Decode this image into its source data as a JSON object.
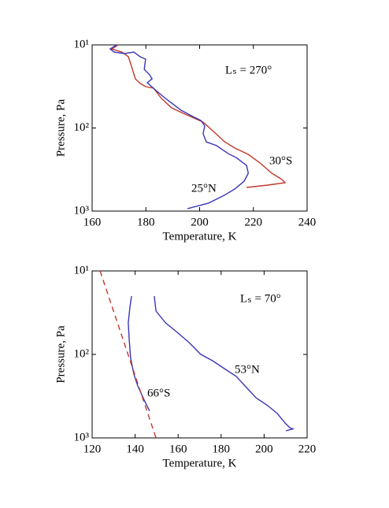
{
  "chart_data": [
    {
      "type": "line",
      "x_label": "Temperature, K",
      "y_label": "Pressure, Pa",
      "annotation": "Lₛ = 270°",
      "log_y": true,
      "y_reversed": true,
      "xlim": [
        160,
        240
      ],
      "xticks": [
        160,
        180,
        200,
        220,
        240
      ],
      "ylim": [
        10,
        1000
      ],
      "yticks": [
        {
          "value": 10,
          "label": "10¹"
        },
        {
          "value": 100,
          "label": "10²"
        },
        {
          "value": 1000,
          "label": "10³"
        }
      ],
      "series": [
        {
          "name": "30°S",
          "color": "#c0392b",
          "x": [
            169.7,
            167.3,
            171.1,
            173.5,
            174.7,
            176.1,
            177.9,
            179.9,
            182.9,
            185.8,
            189.6,
            194.6,
            201.3,
            205.5,
            209.3,
            213.1,
            218.1,
            222.5,
            226.9,
            230.7,
            231.8,
            225.4,
            217.5
          ],
          "y": [
            10,
            11.2,
            12.2,
            13.9,
            18.4,
            25.6,
            29.1,
            31.8,
            33.2,
            44.1,
            57.3,
            68.2,
            84.9,
            112.7,
            146.6,
            174.6,
            207.8,
            264.4,
            351,
            418,
            456,
            487,
            520
          ]
        },
        {
          "name": "25°N",
          "color": "#3a35b8",
          "x": [
            169.1,
            166.7,
            168.2,
            172,
            175.5,
            177.9,
            179.9,
            179.4,
            181.4,
            182.3,
            180.5,
            183.8,
            187.3,
            193.1,
            197.5,
            200.5,
            201.9,
            201.3,
            202.5,
            206.3,
            210.7,
            213.7,
            217.5,
            218.1,
            216.6,
            213.1,
            209.3,
            203.4,
            195.5
          ],
          "y": [
            10,
            11.2,
            12.2,
            12.7,
            12.2,
            13.9,
            14.8,
            19.7,
            22.9,
            25.6,
            28.5,
            35.5,
            44.1,
            61.2,
            72.8,
            81.2,
            94.5,
            117,
            147,
            163,
            204,
            228,
            283,
            351,
            436,
            541,
            643,
            801,
            934
          ]
        }
      ]
    },
    {
      "type": "line",
      "x_label": "Temperature, K",
      "y_label": "Pressure, Pa",
      "annotation": "Lₛ = 70°",
      "log_y": true,
      "y_reversed": true,
      "xlim": [
        120,
        220
      ],
      "xticks": [
        120,
        140,
        160,
        180,
        200,
        220
      ],
      "ylim": [
        10,
        1000
      ],
      "yticks": [
        {
          "value": 10,
          "label": "10¹"
        },
        {
          "value": 100,
          "label": "10²"
        },
        {
          "value": 1000,
          "label": "10³"
        }
      ],
      "series": [
        {
          "name": "53°N",
          "color": "#3a35b8",
          "x": [
            148.9,
            149.7,
            154.1,
            159.6,
            165.1,
            170.5,
            176.0,
            181.5,
            187.0,
            191.8,
            196.2,
            201.7,
            206.1,
            209.7,
            211.9,
            213.4,
            210.1
          ],
          "y": [
            20.0,
            30.2,
            41.8,
            54.4,
            72.1,
            99.8,
            119,
            148,
            183,
            249,
            330,
            410,
            510,
            661,
            754,
            780,
            823
          ]
        },
        {
          "name": "66°S",
          "color": "#3a35b8",
          "x": [
            138.3,
            137.6,
            136.8,
            137.2,
            137.9,
            139.4,
            141.2,
            144.2,
            146.7
          ],
          "y": [
            20.0,
            27.2,
            41.8,
            64.6,
            111,
            172,
            238,
            352,
            476
          ]
        },
        {
          "color": "#c0392b",
          "dash": true,
          "x": [
            123.7,
            149.7
          ],
          "y": [
            10,
            1000
          ]
        }
      ]
    }
  ]
}
